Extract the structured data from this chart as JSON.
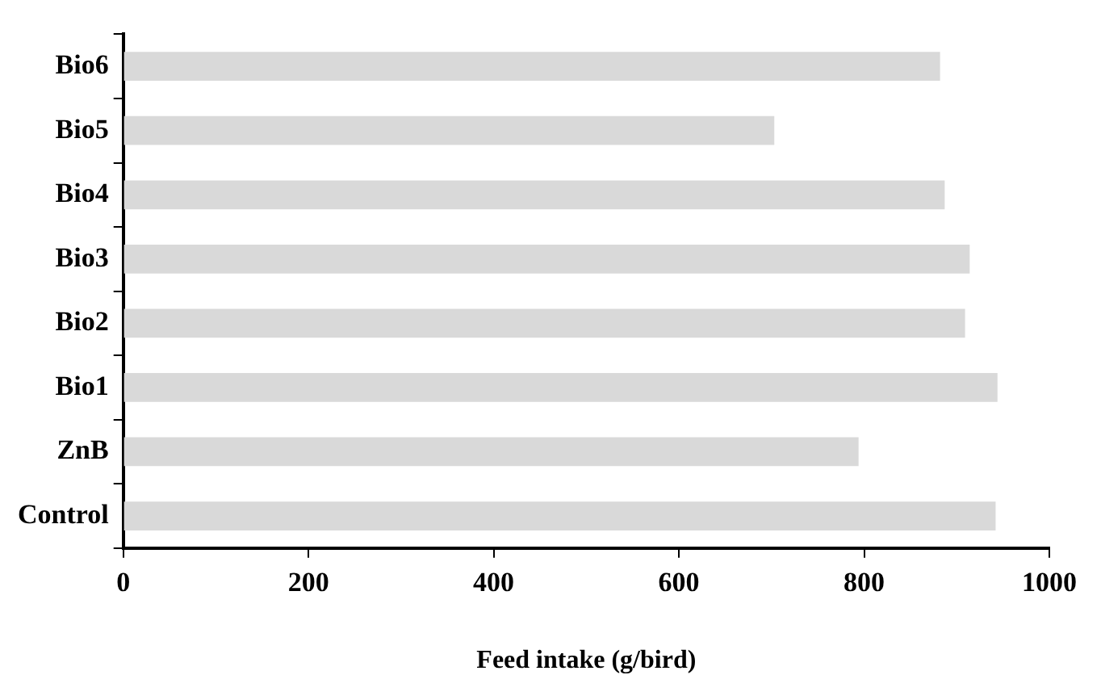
{
  "chart_data": {
    "type": "bar",
    "orientation": "horizontal",
    "xlabel": "Feed intake (g/bird)",
    "categories": [
      "Bio6",
      "Bio5",
      "Bio4",
      "Bio3",
      "Bio2",
      "Bio1",
      "ZnB",
      "Control"
    ],
    "values": [
      882,
      703,
      887,
      914,
      909,
      944,
      794,
      942
    ],
    "color": "#d9d9d9",
    "xlim": [
      0,
      1000
    ],
    "xticks": [
      0,
      200,
      400,
      600,
      800,
      1000
    ],
    "grid": false,
    "legend": false
  }
}
